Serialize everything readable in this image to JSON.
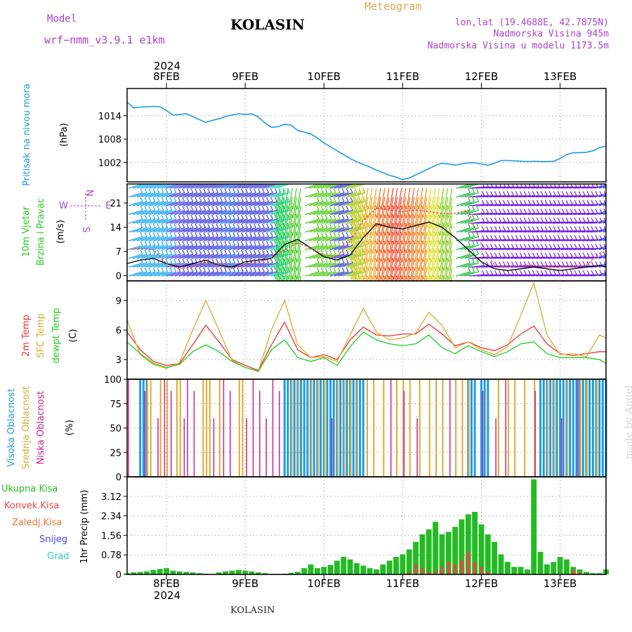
{
  "header": {
    "model_label": "Model",
    "model_value": "wrf−nmm_v3.9.1  e1km",
    "title": "KOLASIN",
    "meteogram_label": "Meteogram",
    "lonlat": "lon,lat (19.4688E, 42.7875N)",
    "altitude": "Nadmorska Visina 945m",
    "model_altitude": "Nadmorska Visina u modelu 1173.5m",
    "year_top": "2024",
    "year_bottom": "2024",
    "footer": "KOLASIN",
    "watermark": "made by Angel"
  },
  "colors": {
    "pressure": "#1e9be6",
    "wind_title": "#22cc22",
    "wind_speed_line": "#000000",
    "wind_gust_line": "#ee4444",
    "t2m": "#ee3333",
    "tsfc": "#ddaa33",
    "dewpt": "#22cc22",
    "cloud_high": "#1e9be6",
    "cloud_mid": "#ddaa33",
    "cloud_low": "#cc2288",
    "precip_total": "#22bb22",
    "precip_conv": "#ee4444",
    "precip_frz": "#ee7733",
    "precip_snow": "#4444ee",
    "precip_hail": "#22cccc",
    "compass": "#aa44cc",
    "header_purple": "#aa44cc",
    "header_orange": "#ddaa55"
  },
  "chart_data": [
    {
      "type": "line",
      "panel": "pressure",
      "ylabel_lines": [
        "Pritisak na nivou mora",
        "(hPa)"
      ],
      "yticks": [
        "1014",
        "1008",
        "1002"
      ],
      "ylim": [
        997,
        1021
      ],
      "x_days": [
        "8FEB",
        "9FEB",
        "10FEB",
        "11FEB",
        "12FEB",
        "13FEB"
      ],
      "x_hours": [
        0,
        2,
        4,
        6,
        8,
        10,
        12,
        14,
        16,
        18,
        20,
        22,
        24,
        26,
        28,
        30,
        32,
        34,
        36,
        38,
        40,
        42,
        44,
        46,
        48,
        50,
        52,
        54,
        56,
        58,
        60,
        62,
        64,
        66,
        68,
        70,
        72,
        74,
        76,
        78,
        80,
        82,
        84,
        86,
        88,
        90,
        92,
        94,
        96,
        98,
        100,
        102,
        104,
        106,
        108,
        110,
        112,
        114,
        116,
        118,
        120,
        122,
        124,
        126,
        128,
        130,
        132,
        134,
        136,
        138,
        140,
        142,
        144,
        146
      ],
      "series": [
        {
          "values": [
            1017.5,
            1016.0,
            1016.2,
            1016.3,
            1016.4,
            1016.3,
            1015.3,
            1014.2,
            1014.3,
            1014.5,
            1013.8,
            1013.0,
            1012.3,
            1012.8,
            1013.2,
            1013.8,
            1014.2,
            1014.5,
            1014.3,
            1014.5,
            1013.7,
            1012.2,
            1011.0,
            1011.2,
            1011.8,
            1011.6,
            1010.2,
            1009.8,
            1009.3,
            1008.3,
            1007.0,
            1006.0,
            1005.0,
            1004.0,
            1003.0,
            1002.2,
            1001.5,
            1000.8,
            1000.0,
            999.4,
            998.7,
            998.2,
            997.6,
            998.0,
            998.8,
            999.6,
            1000.4,
            1001.2,
            1001.8,
            1001.6,
            1001.3,
            1001.6,
            1001.9,
            1001.9,
            1001.6,
            1001.3,
            1001.8,
            1002.5,
            1002.5,
            1002.4,
            1002.3,
            1002.2,
            1002.3,
            1002.2,
            1002.2,
            1002.3,
            1003.0,
            1004.0,
            1004.5,
            1004.5,
            1004.6,
            1005.0,
            1005.8,
            1006.2
          ]
        }
      ]
    },
    {
      "type": "line",
      "panel": "wind",
      "ylabel_lines": [
        "10m Vjetar",
        "Brzina i Pravac",
        "(m/s)"
      ],
      "compass": {
        "n": "N",
        "s": "S",
        "e": "E",
        "w": "W"
      },
      "yticks": [
        "21",
        "14",
        "7",
        "0"
      ],
      "ylim": [
        -1.5,
        26.5
      ],
      "x_hours": [
        0,
        4,
        8,
        12,
        16,
        20,
        24,
        28,
        32,
        36,
        40,
        44,
        48,
        52,
        56,
        60,
        64,
        68,
        72,
        76,
        80,
        84,
        88,
        92,
        96,
        100,
        104,
        108,
        112,
        116,
        120,
        124,
        128,
        132,
        136,
        140,
        144,
        146
      ],
      "series": [
        {
          "name_hint": "speed",
          "values": [
            3.5,
            4.5,
            5.0,
            3.5,
            2.5,
            3.5,
            4.5,
            3.0,
            2.5,
            4.0,
            4.5,
            5.0,
            9.0,
            10.5,
            8.0,
            5.5,
            4.5,
            6.0,
            11.0,
            15.0,
            14.0,
            13.5,
            14.5,
            15.5,
            14.0,
            11.0,
            7.5,
            4.0,
            2.0,
            1.5,
            2.0,
            2.5,
            2.0,
            1.5,
            2.0,
            2.5,
            3.0,
            2.5
          ]
        },
        {
          "name_hint": "gust",
          "values": [
            7.5,
            8.0,
            7.5,
            3.5,
            2.0,
            2.5,
            4.0,
            3.0,
            2.0,
            3.5,
            4.0,
            5.0,
            7.5,
            9.5,
            8.0,
            6.0,
            5.5,
            10.0,
            16.0,
            19.5,
            19.0,
            18.5,
            19.0,
            18.5,
            18.0,
            18.0,
            19.0,
            9.0,
            3.0,
            2.5,
            3.0,
            3.0,
            2.5,
            2.5,
            2.5,
            3.0,
            6.5,
            7.0
          ]
        }
      ],
      "barb_colors": [
        "#22aaee",
        "#22aaee",
        "#22aaee",
        "#5544ee",
        "#4444dd",
        "#4444dd",
        "#4444dd",
        "#3366ee",
        "#4444dd",
        "#4444dd",
        "#4444dd",
        "#22ccaa",
        "#22cc44",
        "#44cc22",
        "#55cc22",
        "#55cc22",
        "#4444dd",
        "#88cc22",
        "#cccc22",
        "#eeaa22",
        "#ee6622",
        "#ee4422",
        "#ee6622",
        "#ee8822",
        "#dddd22",
        "#88cc22",
        "#22bb44",
        "#7722dd",
        "#7722dd",
        "#7722dd",
        "#7722dd",
        "#7722dd",
        "#7722dd",
        "#7722dd",
        "#7722dd",
        "#7722dd",
        "#7722dd",
        "#4444ee"
      ]
    },
    {
      "type": "line",
      "panel": "temperature",
      "ylabel_lines": [
        "2m Temp",
        "SFC Temp",
        "dewpt Temp",
        "(C)"
      ],
      "yticks": [
        "9",
        "6",
        "3"
      ],
      "ylim": [
        1.0,
        11.0
      ],
      "x_hours": [
        0,
        4,
        8,
        12,
        16,
        20,
        24,
        28,
        32,
        36,
        40,
        44,
        48,
        52,
        56,
        60,
        64,
        68,
        72,
        76,
        80,
        84,
        88,
        92,
        96,
        100,
        104,
        108,
        112,
        116,
        120,
        124,
        128,
        132,
        136,
        140,
        144,
        146
      ],
      "series": [
        {
          "name_hint": "t2m",
          "values": [
            5.8,
            4.0,
            2.8,
            2.4,
            2.6,
            4.5,
            6.5,
            4.8,
            3.0,
            2.4,
            1.9,
            4.5,
            6.8,
            4.0,
            3.2,
            3.5,
            3.0,
            5.0,
            6.3,
            5.5,
            5.4,
            5.6,
            5.6,
            6.6,
            5.6,
            4.4,
            4.8,
            4.2,
            3.9,
            4.5,
            5.6,
            6.4,
            4.6,
            3.6,
            3.4,
            3.6,
            3.8,
            3.8
          ]
        },
        {
          "name_hint": "tsfc",
          "values": [
            7.0,
            3.5,
            2.5,
            2.1,
            2.7,
            6.0,
            9.0,
            6.0,
            2.9,
            2.2,
            1.8,
            6.0,
            9.0,
            4.5,
            3.2,
            3.3,
            2.8,
            5.5,
            8.2,
            5.8,
            5.0,
            5.2,
            5.7,
            7.8,
            6.5,
            4.2,
            4.8,
            4.0,
            3.5,
            4.3,
            7.5,
            10.8,
            5.5,
            3.5,
            3.6,
            3.3,
            5.5,
            5.2
          ]
        },
        {
          "name_hint": "dewpt",
          "values": [
            4.8,
            3.6,
            2.6,
            2.2,
            2.5,
            3.8,
            4.5,
            3.8,
            2.8,
            2.2,
            1.8,
            4.0,
            5.0,
            3.2,
            2.8,
            3.2,
            2.4,
            4.3,
            5.8,
            5.0,
            4.6,
            4.4,
            4.6,
            5.5,
            4.2,
            3.6,
            4.4,
            3.8,
            3.3,
            3.8,
            4.6,
            4.8,
            3.6,
            3.2,
            3.2,
            3.2,
            3.0,
            2.6
          ]
        }
      ]
    },
    {
      "type": "bar",
      "panel": "clouds",
      "ylabel_lines": [
        "Visoka Oblacnost",
        "Srednja Oblacnost",
        "Niska Oblacnost",
        "(%)"
      ],
      "yticks": [
        "100",
        "75",
        "50",
        "25",
        "0"
      ],
      "ylim": [
        0,
        100
      ],
      "high_cloud_spans_hours": [
        [
          4,
          6
        ],
        [
          48,
          72
        ],
        [
          104,
          106
        ],
        [
          108,
          110
        ],
        [
          126,
          146
        ]
      ],
      "mid_cloud_bars_hours": [
        6,
        7,
        10,
        12,
        15,
        16,
        23,
        24,
        25,
        28,
        34,
        35,
        50,
        52,
        56,
        58,
        60,
        64,
        66,
        68,
        70,
        73,
        75,
        78,
        82,
        84,
        86,
        89,
        92,
        94,
        96,
        100,
        102,
        104,
        113,
        116,
        118,
        121,
        124,
        128,
        130,
        134,
        138,
        140,
        143
      ],
      "low_cloud_bars_hours": [
        0,
        5,
        9,
        11,
        13,
        17,
        18,
        20,
        26,
        29,
        31,
        36,
        38,
        40,
        42,
        44,
        46,
        62,
        80,
        84,
        88,
        98,
        108,
        112,
        115,
        124,
        132,
        137
      ],
      "x_hours": [
        0,
        146
      ]
    },
    {
      "type": "bar",
      "panel": "precip",
      "legend": [
        "Ukupna Kisa",
        "Konvek.Kisa",
        "Zaledj.Kisa",
        "Snijeg",
        "Grad"
      ],
      "ylabel": "1hr Precip (mm)",
      "yticks": [
        "3.12",
        "2.34",
        "1.56",
        "0.78",
        "0"
      ],
      "ylim": [
        0,
        3.9
      ],
      "x_days": [
        "8FEB",
        "9FEB",
        "10FEB",
        "11FEB",
        "12FEB",
        "13FEB"
      ],
      "x_hours": [
        0,
        2,
        4,
        6,
        8,
        10,
        12,
        14,
        16,
        18,
        20,
        22,
        24,
        26,
        28,
        30,
        32,
        34,
        36,
        38,
        40,
        42,
        44,
        46,
        48,
        50,
        52,
        54,
        56,
        58,
        60,
        62,
        64,
        66,
        68,
        70,
        72,
        74,
        76,
        78,
        80,
        82,
        84,
        86,
        88,
        90,
        92,
        94,
        96,
        98,
        100,
        102,
        104,
        106,
        108,
        110,
        112,
        114,
        116,
        118,
        120,
        122,
        124,
        126,
        128,
        130,
        132,
        134,
        136,
        138,
        140,
        142,
        144,
        146
      ],
      "series": [
        {
          "name_hint": "total",
          "values": [
            0.05,
            0.08,
            0.1,
            0.12,
            0.18,
            0.22,
            0.25,
            0.15,
            0.12,
            0.1,
            0.08,
            0.05,
            0.03,
            0.02,
            0.08,
            0.12,
            0.15,
            0.18,
            0.15,
            0.12,
            0.08,
            0.05,
            0.02,
            0.02,
            0.03,
            0.06,
            0.1,
            0.25,
            0.4,
            0.25,
            0.3,
            0.38,
            0.55,
            0.7,
            0.6,
            0.45,
            0.35,
            0.25,
            0.2,
            0.4,
            0.55,
            0.7,
            0.8,
            1.0,
            1.3,
            1.6,
            1.8,
            2.1,
            1.6,
            1.7,
            1.9,
            2.2,
            2.4,
            2.5,
            2.0,
            1.6,
            1.3,
            0.8,
            0.5,
            0.3,
            0.3,
            0.2,
            3.8,
            0.9,
            0.4,
            0.5,
            0.7,
            0.6,
            0.3,
            0.2,
            0.1,
            0.05,
            0.05,
            0.2
          ]
        },
        {
          "name_hint": "convective",
          "values": [
            0,
            0,
            0,
            0,
            0,
            0,
            0,
            0,
            0,
            0,
            0,
            0,
            0,
            0,
            0,
            0,
            0,
            0,
            0,
            0,
            0,
            0,
            0,
            0,
            0,
            0,
            0,
            0,
            0,
            0,
            0,
            0,
            0,
            0,
            0,
            0,
            0,
            0,
            0,
            0,
            0,
            0,
            0,
            0.1,
            0.4,
            0.25,
            0.1,
            0.15,
            0.3,
            0.5,
            0.4,
            0.6,
            0.9,
            0.5,
            0.3,
            0.1,
            0,
            0,
            0,
            0,
            0,
            0,
            0,
            0,
            0,
            0,
            0,
            0,
            0.2,
            0.1,
            0,
            0,
            0,
            0
          ]
        }
      ]
    }
  ]
}
